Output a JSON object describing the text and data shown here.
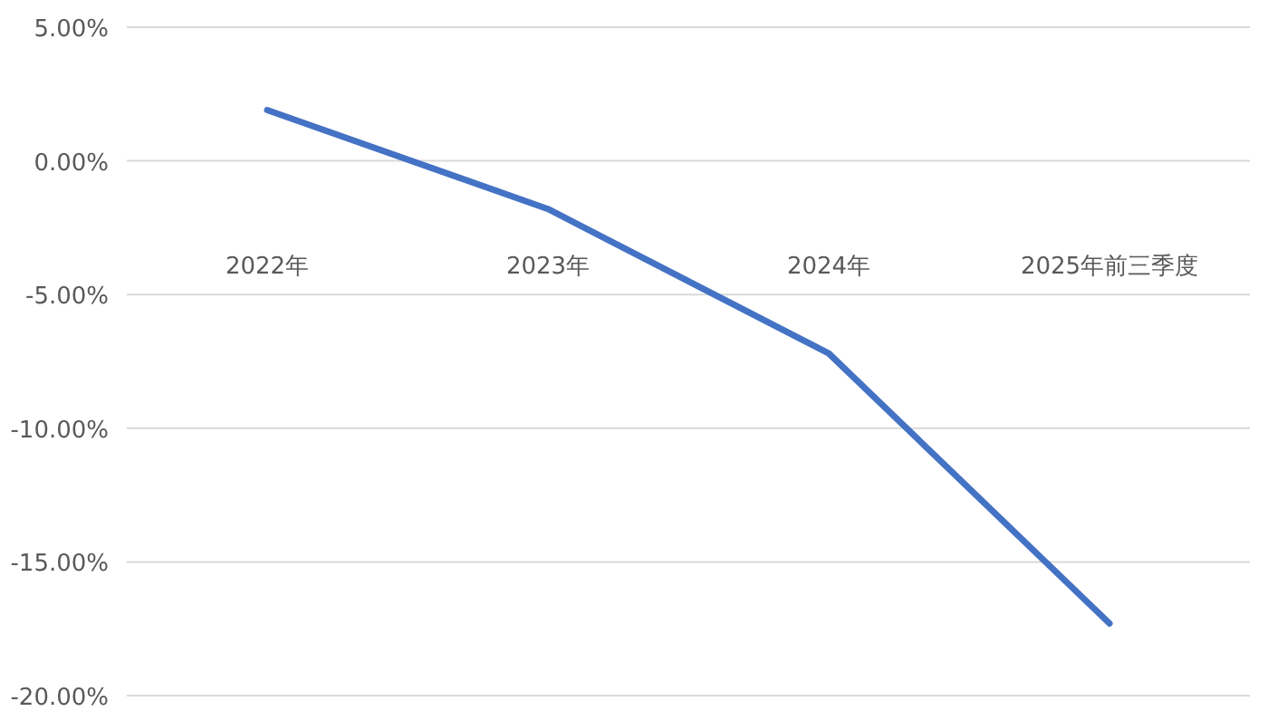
{
  "chart_data": {
    "type": "line",
    "categories": [
      "2022年",
      "2023年",
      "2024年",
      "2025年前三季度"
    ],
    "series": [
      {
        "color": "#4472c4",
        "values": [
          1.9,
          -1.8,
          -7.2,
          -17.3
        ]
      }
    ],
    "ylim": [
      -20,
      5
    ],
    "yticks": [
      {
        "value": 5,
        "label": "5.00%"
      },
      {
        "value": 0,
        "label": "0.00%"
      },
      {
        "value": -5,
        "label": "-5.00%"
      },
      {
        "value": -10,
        "label": "-10.00%"
      },
      {
        "value": -15,
        "label": "-15.00%"
      },
      {
        "value": -20,
        "label": "-20.00%"
      }
    ],
    "grid": "y",
    "marker": "none",
    "line_style": "solid"
  }
}
